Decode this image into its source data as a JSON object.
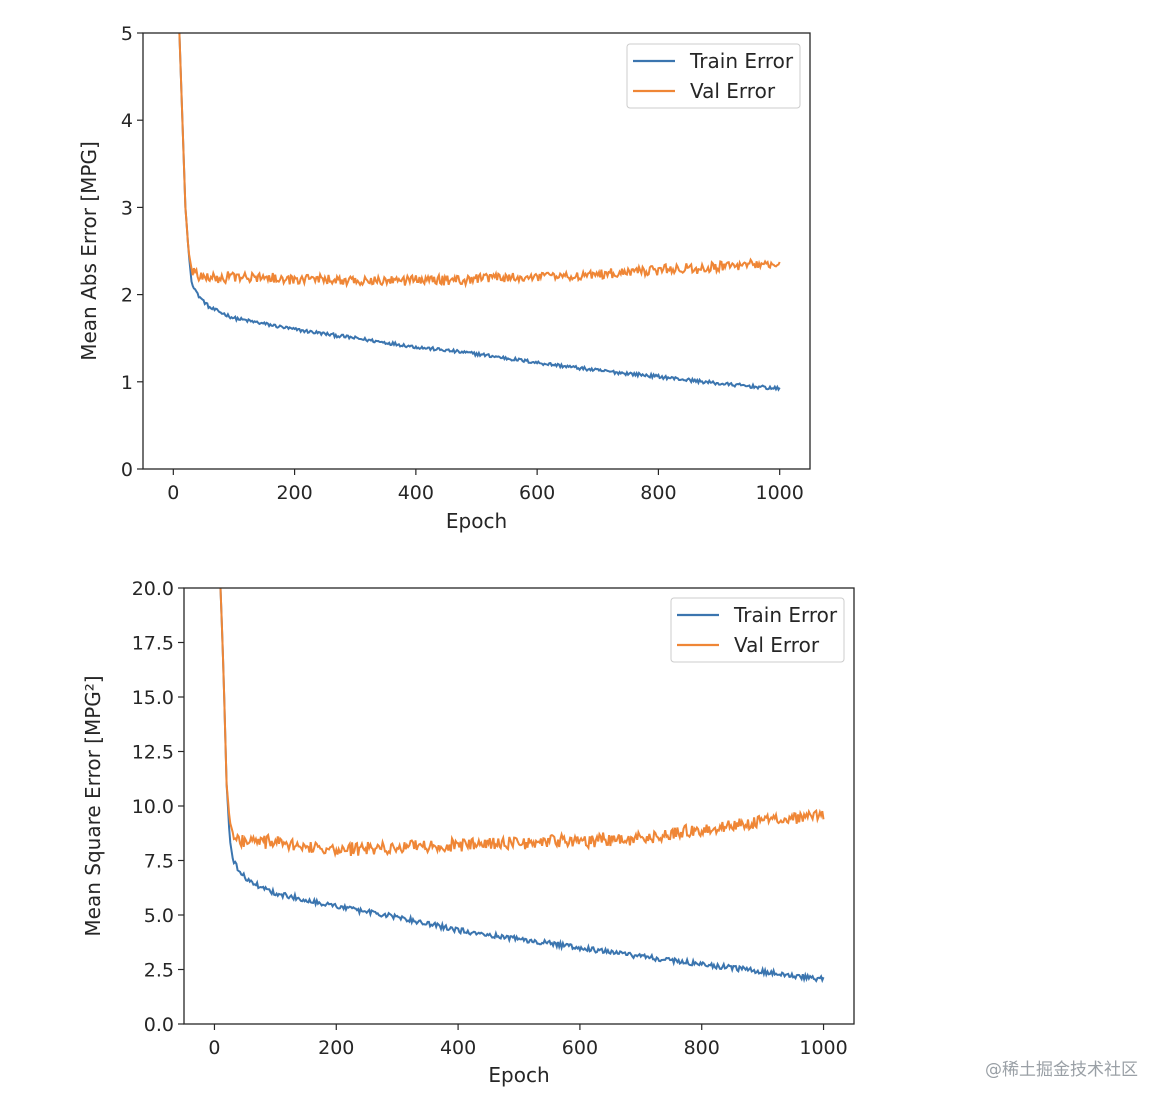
{
  "watermark": "@稀土掘金技术社区",
  "chart_data": [
    {
      "type": "line",
      "xlabel": "Epoch",
      "ylabel": "Mean Abs Error [MPG]",
      "xlim": [
        -50,
        1050
      ],
      "ylim": [
        0,
        5
      ],
      "xticks": [
        0,
        200,
        400,
        600,
        800,
        1000
      ],
      "xtick_labels": [
        "0",
        "200",
        "400",
        "600",
        "800",
        "1000"
      ],
      "yticks": [
        0,
        1,
        2,
        3,
        4,
        5
      ],
      "ytick_labels": [
        "0",
        "1",
        "2",
        "3",
        "4",
        "5"
      ],
      "grid": false,
      "legend_position": "top-right",
      "series": [
        {
          "name": "Train Error",
          "color": "#3b75af",
          "x": [
            10,
            15,
            20,
            25,
            30,
            40,
            60,
            100,
            200,
            300,
            400,
            500,
            600,
            700,
            800,
            900,
            1000
          ],
          "y": [
            5.0,
            4.0,
            3.0,
            2.5,
            2.15,
            2.0,
            1.85,
            1.73,
            1.6,
            1.5,
            1.4,
            1.32,
            1.22,
            1.13,
            1.06,
            0.98,
            0.92
          ],
          "noise": 0.02
        },
        {
          "name": "Val Error",
          "color": "#ef8636",
          "x": [
            10,
            15,
            20,
            25,
            30,
            40,
            60,
            100,
            200,
            300,
            400,
            500,
            600,
            700,
            800,
            900,
            1000
          ],
          "y": [
            5.0,
            4.0,
            3.0,
            2.5,
            2.3,
            2.22,
            2.2,
            2.2,
            2.17,
            2.16,
            2.17,
            2.18,
            2.2,
            2.23,
            2.28,
            2.32,
            2.35
          ],
          "noise": 0.07
        }
      ]
    },
    {
      "type": "line",
      "xlabel": "Epoch",
      "ylabel": "Mean Square Error [MPG²]",
      "xlim": [
        -50,
        1050
      ],
      "ylim": [
        0,
        20
      ],
      "xticks": [
        0,
        200,
        400,
        600,
        800,
        1000
      ],
      "xtick_labels": [
        "0",
        "200",
        "400",
        "600",
        "800",
        "1000"
      ],
      "yticks": [
        0,
        2.5,
        5,
        7.5,
        10,
        12.5,
        15,
        17.5,
        20
      ],
      "ytick_labels": [
        "0.0",
        "2.5",
        "5.0",
        "7.5",
        "10.0",
        "12.5",
        "15.0",
        "17.5",
        "20.0"
      ],
      "grid": false,
      "legend_position": "top-right",
      "series": [
        {
          "name": "Train Error",
          "color": "#3b75af",
          "x": [
            10,
            15,
            20,
            25,
            30,
            40,
            60,
            100,
            200,
            300,
            400,
            500,
            600,
            700,
            800,
            900,
            1000
          ],
          "y": [
            20.0,
            16.0,
            11.0,
            8.5,
            7.6,
            7.0,
            6.5,
            6.0,
            5.4,
            4.9,
            4.3,
            3.9,
            3.5,
            3.1,
            2.75,
            2.4,
            2.05
          ],
          "noise": 0.12
        },
        {
          "name": "Val Error",
          "color": "#ef8636",
          "x": [
            10,
            15,
            20,
            25,
            30,
            40,
            60,
            100,
            200,
            300,
            400,
            500,
            600,
            700,
            800,
            900,
            1000
          ],
          "y": [
            20.0,
            16.0,
            11.0,
            9.3,
            8.8,
            8.5,
            8.4,
            8.3,
            8.0,
            8.1,
            8.2,
            8.3,
            8.4,
            8.5,
            8.9,
            9.3,
            9.6
          ],
          "noise": 0.35
        }
      ]
    }
  ]
}
